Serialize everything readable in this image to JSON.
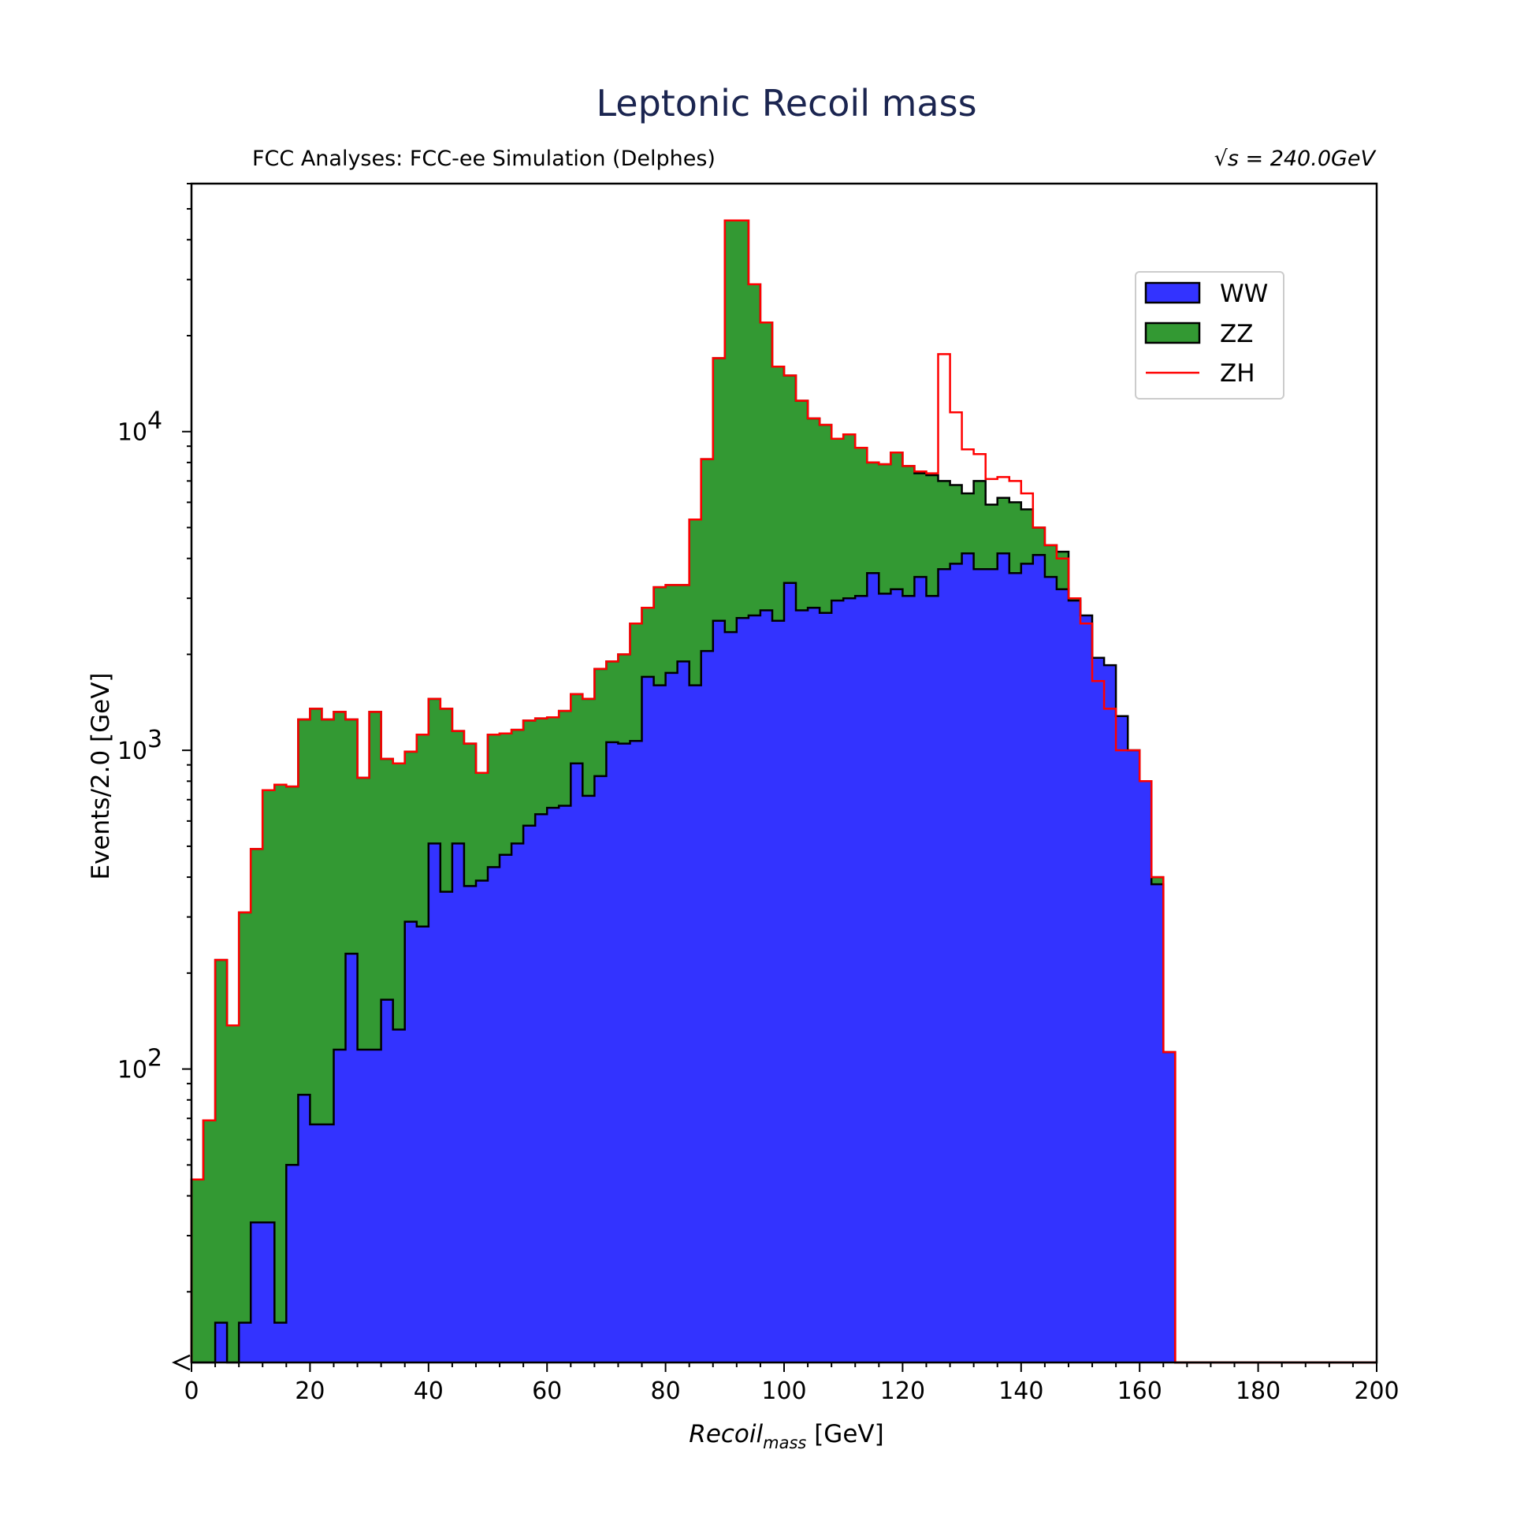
{
  "chart_data": {
    "type": "histogram",
    "title": "Leptonic Recoil mass",
    "subtitle_left": "FCC Analyses: FCC-ee Simulation (Delphes)",
    "subtitle_right": "√s = 240.0GeV",
    "xlabel_main": "Recoil",
    "xlabel_sub": "mass",
    "xlabel_unit": " [GeV]",
    "ylabel": "Events/2.0 [GeV]",
    "xlim": [
      0,
      200
    ],
    "ylim": [
      12,
      60000
    ],
    "yscale": "log",
    "bin_width": 2,
    "x_ticks": [
      0,
      20,
      40,
      60,
      80,
      100,
      120,
      140,
      160,
      180,
      200
    ],
    "y_ticks": [
      {
        "value": 100,
        "label": "10",
        "exp": "2"
      },
      {
        "value": 1000,
        "label": "10",
        "exp": "3"
      },
      {
        "value": 10000,
        "label": "10",
        "exp": "4"
      }
    ],
    "legend_position": "top-right",
    "stacked": true,
    "bin_edges_start": 0,
    "series": [
      {
        "name": "WW",
        "color": "#3333ff",
        "style": "filled",
        "values": [
          0,
          0,
          16,
          0,
          16,
          33,
          33,
          16,
          50,
          83,
          67,
          67,
          115,
          230,
          115,
          115,
          165,
          133,
          290,
          280,
          510,
          360,
          510,
          375,
          390,
          430,
          470,
          510,
          580,
          630,
          660,
          670,
          910,
          720,
          830,
          1060,
          1050,
          1070,
          1700,
          1600,
          1750,
          1900,
          1600,
          2050,
          2550,
          2350,
          2600,
          2650,
          2750,
          2550,
          3350,
          2750,
          2800,
          2700,
          2950,
          3000,
          3050,
          3600,
          3100,
          3200,
          3050,
          3500,
          3050,
          3700,
          3850,
          4150,
          3700,
          3700,
          4150,
          3600,
          3850,
          4100,
          3500,
          3200,
          2950,
          2650,
          1950,
          1850,
          1280,
          1000,
          800,
          380,
          113,
          0,
          0,
          0,
          0,
          0,
          0,
          0,
          0,
          0,
          0,
          0,
          0,
          0,
          0,
          0,
          0,
          0
        ]
      },
      {
        "name": "ZZ",
        "color": "#339933",
        "style": "filled",
        "values": [
          45,
          69,
          220,
          137,
          310,
          490,
          750,
          780,
          770,
          1250,
          1350,
          1250,
          1320,
          1250,
          820,
          1320,
          940,
          910,
          990,
          1120,
          1450,
          1350,
          1150,
          1050,
          850,
          1120,
          1130,
          1160,
          1240,
          1260,
          1270,
          1330,
          1500,
          1450,
          1800,
          1900,
          2000,
          2500,
          2800,
          3250,
          3300,
          3300,
          5300,
          8200,
          17000,
          46000,
          46000,
          29000,
          22000,
          16000,
          15000,
          12500,
          11000,
          10500,
          9500,
          9800,
          8900,
          8000,
          7900,
          8600,
          7800,
          7400,
          7300,
          7000,
          6800,
          6400,
          7000,
          5900,
          6200,
          6000,
          5700,
          5000,
          4400,
          4200,
          3000,
          2500,
          1650,
          1350,
          1000,
          1000,
          800,
          400,
          113,
          0,
          0,
          0,
          0,
          0,
          0,
          0,
          0,
          0,
          0,
          0,
          0,
          0,
          0,
          0,
          0,
          0
        ]
      },
      {
        "name": "ZH",
        "color": "#ff0000",
        "style": "step",
        "values": [
          45,
          69,
          220,
          137,
          310,
          490,
          750,
          780,
          770,
          1250,
          1350,
          1250,
          1320,
          1250,
          820,
          1320,
          940,
          910,
          990,
          1120,
          1450,
          1350,
          1150,
          1050,
          850,
          1120,
          1130,
          1160,
          1240,
          1260,
          1270,
          1330,
          1500,
          1450,
          1800,
          1900,
          2000,
          2500,
          2800,
          3250,
          3300,
          3300,
          5300,
          8200,
          17000,
          46000,
          46000,
          29000,
          22000,
          16000,
          15000,
          12500,
          11000,
          10500,
          9500,
          9800,
          8900,
          8000,
          7900,
          8600,
          7800,
          7500,
          7400,
          17500,
          11500,
          8800,
          8500,
          7100,
          7200,
          7000,
          6400,
          5000,
          4400,
          4000,
          3000,
          2500,
          1650,
          1350,
          1000,
          1000,
          800,
          400,
          113,
          0,
          0,
          0,
          0,
          0,
          0,
          0,
          0,
          0,
          0,
          0,
          0,
          0,
          0,
          0,
          0,
          0
        ]
      }
    ]
  }
}
